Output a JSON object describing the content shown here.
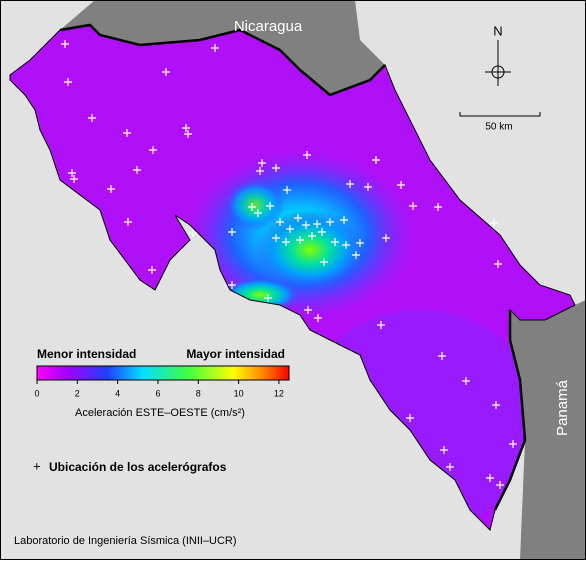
{
  "map": {
    "labels": {
      "north_country": "Nicaragua",
      "south_country": "Panamá",
      "north_arrow": "N",
      "scale": "50 km"
    },
    "colorbar": {
      "label_low": "Menor intensidad",
      "label_high": "Mayor intensidad",
      "lim": [
        0,
        12.5
      ],
      "ticks": [
        0,
        2,
        4,
        6,
        8,
        10,
        12
      ],
      "title": "Aceleración ESTE–OESTE (cm/s²)"
    },
    "legend": {
      "symbol": "+",
      "text": "Ubicación de los acelerógrafos"
    },
    "credit": "Laboratorio de Ingeniería Sísmica (INII–UCR)"
  }
}
